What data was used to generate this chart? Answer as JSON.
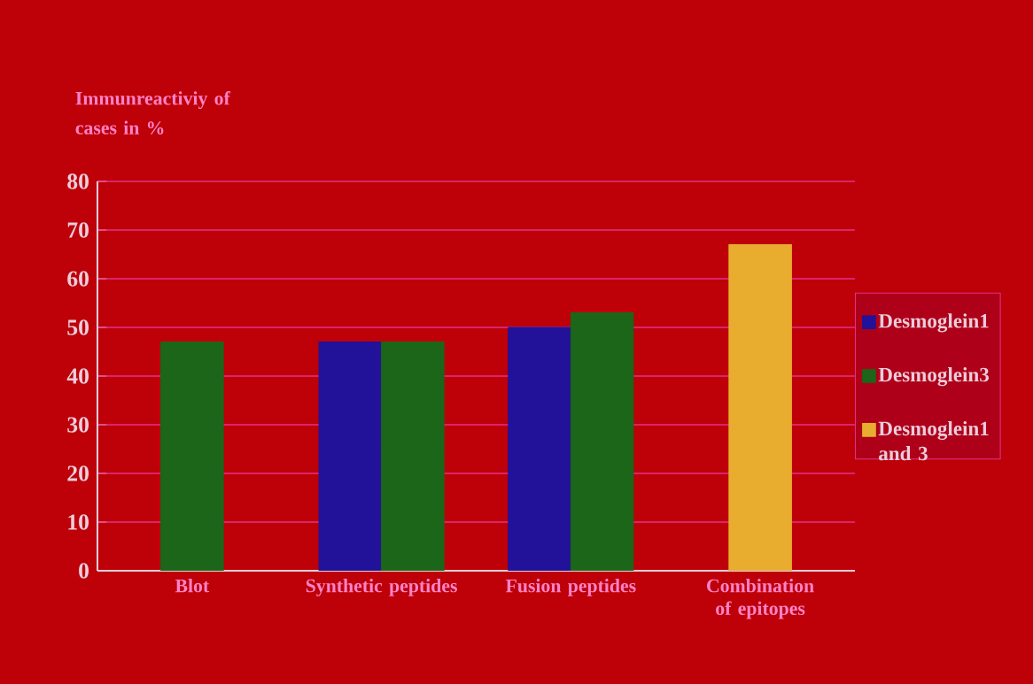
{
  "chart_data": {
    "type": "bar",
    "ylabel": "Immunreactiviy of cases in %",
    "categories": [
      "Blot",
      "Synthetic peptides",
      "Fusion peptides",
      "Combination of epitopes"
    ],
    "series": [
      {
        "name": "Desmoglein1",
        "color": "#22129a",
        "values": [
          null,
          47,
          50,
          null
        ]
      },
      {
        "name": "Desmoglein3",
        "color": "#1c661a",
        "values": [
          47,
          47,
          53,
          null
        ]
      },
      {
        "name": "Desmoglein1 and 3",
        "color": "#e8ad2e",
        "values": [
          null,
          null,
          null,
          67
        ]
      }
    ],
    "ylim": [
      0,
      80
    ],
    "yticks": [
      0,
      10,
      20,
      30,
      40,
      50,
      60,
      70,
      80
    ],
    "grid": "y",
    "legend": "right"
  }
}
